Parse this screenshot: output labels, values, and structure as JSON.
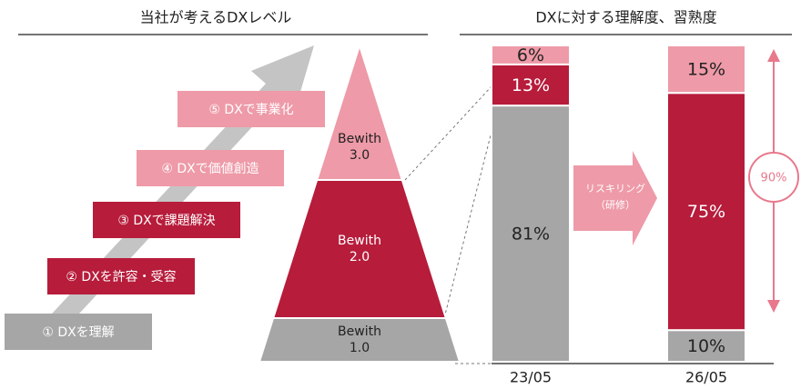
{
  "header": {
    "left_title": "当社が考えるDXレベル",
    "right_title": "DXに対する理解度、習熟度"
  },
  "steps": [
    "① DXを理解",
    "② DXを許容・受容",
    "③ DXで課題解決",
    "④ DXで価値創造",
    "⑤ DXで事業化"
  ],
  "pyramid": [
    {
      "name": "Bewith",
      "version": "1.0"
    },
    {
      "name": "Bewith",
      "version": "2.0"
    },
    {
      "name": "Bewith",
      "version": "3.0"
    }
  ],
  "chart_data": {
    "type": "stacked_bar",
    "categories": [
      "23/05",
      "26/05"
    ],
    "series": [
      {
        "color": "#a6a6a6",
        "values": [
          81,
          10
        ],
        "value_labels": [
          "81%",
          "10%"
        ]
      },
      {
        "color": "#b71c3b",
        "values": [
          13,
          75
        ],
        "value_labels": [
          "13%",
          "75%"
        ]
      },
      {
        "color": "#ee9aa8",
        "values": [
          6,
          15
        ],
        "value_labels": [
          "6%",
          "15%"
        ]
      }
    ],
    "arrow_label": [
      "リスキリング",
      "（研修）"
    ],
    "annotation": "90%"
  }
}
